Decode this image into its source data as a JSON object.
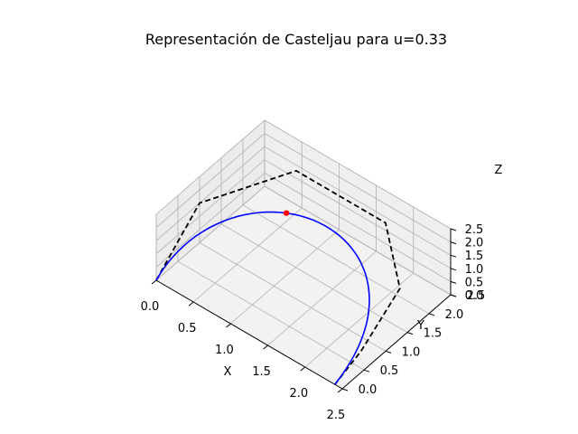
{
  "chart_data": {
    "type": "line3d",
    "title": "Representación de Casteljau para u=0.33",
    "xlabel": "X",
    "ylabel": "Y",
    "zlabel": "Z",
    "xlim": [
      0,
      2.5
    ],
    "ylim": [
      0,
      2.5
    ],
    "zlim": [
      0,
      2.5
    ],
    "x_ticks": [
      "0.0",
      "0.5",
      "1.0",
      "1.5",
      "2.0",
      "2.5"
    ],
    "y_ticks": [
      "0.0",
      "0.5",
      "1.0",
      "1.5",
      "2.0",
      "2.5"
    ],
    "z_ticks": [
      "0.0",
      "0.5",
      "1.0",
      "1.5",
      "2.0",
      "2.5"
    ],
    "grid": true,
    "u": 0.33,
    "control_polygon": {
      "style": "dashed",
      "color": "#000000",
      "points": [
        [
          0,
          0,
          0
        ],
        [
          0,
          1,
          1.5
        ],
        [
          0.6,
          2.2,
          2
        ],
        [
          1.8,
          2.2,
          2
        ],
        [
          2.4,
          1.5,
          1.5
        ],
        [
          2.4,
          0.6,
          0.4
        ],
        [
          2.4,
          0,
          0
        ]
      ]
    },
    "curve": {
      "color": "#0000ff",
      "samples": 60
    },
    "point": {
      "color": "#ff0000",
      "u": 0.33
    }
  }
}
